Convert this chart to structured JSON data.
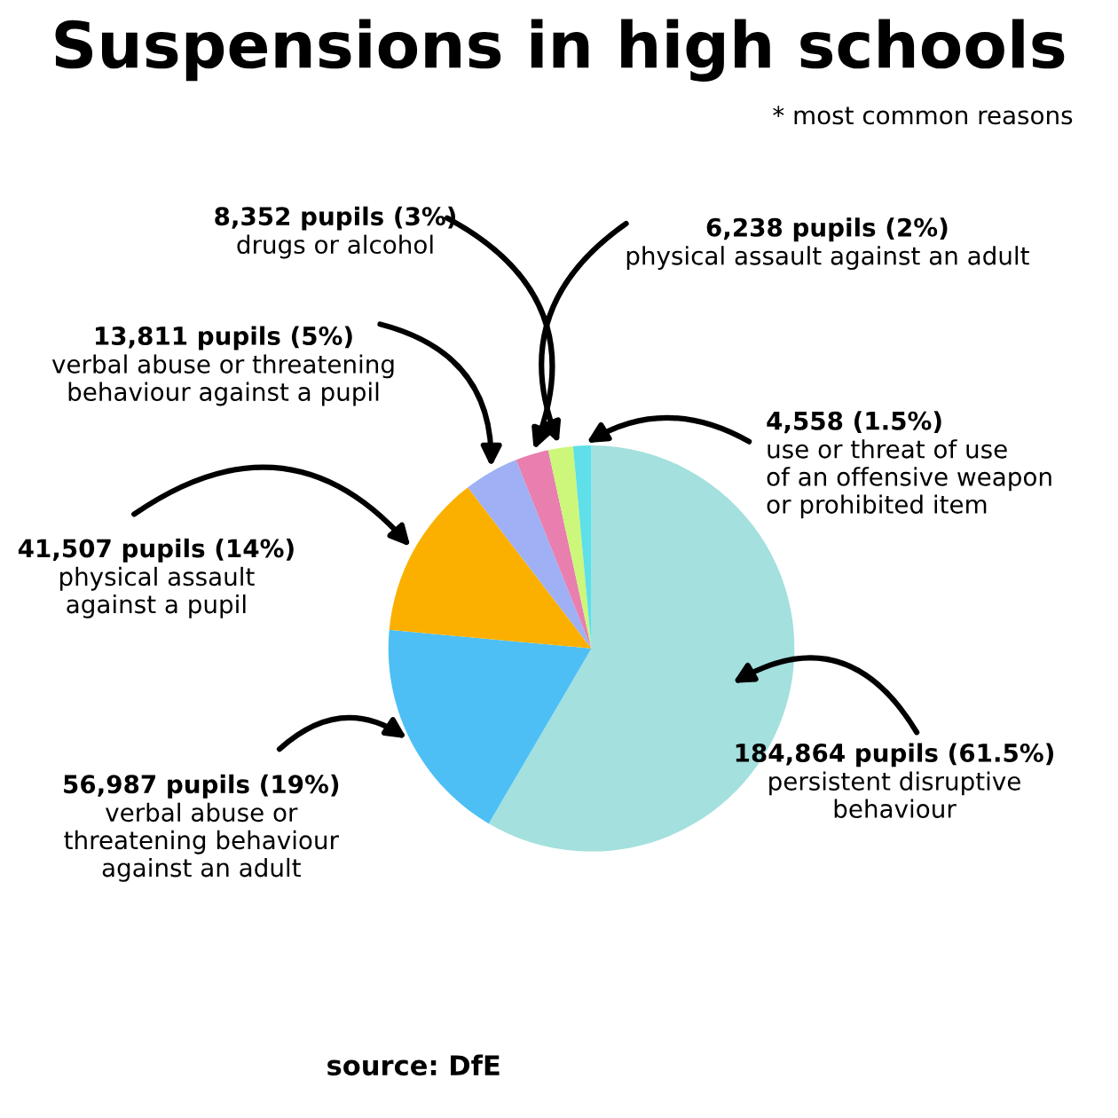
{
  "chart_data": {
    "type": "pie",
    "title": "Suspensions in high schools",
    "subtitle": "* most common reasons",
    "categories": [
      "persistent disruptive behaviour",
      "verbal abuse or threatening behaviour against an adult",
      "physical assault against a pupil",
      "verbal abuse or threatening behaviour against a pupil",
      "drugs or alcohol",
      "physical assault against an adult",
      "use or threat of use of an offensive weapon or prohibited item"
    ],
    "values": [
      184864,
      56987,
      41507,
      13811,
      8352,
      6238,
      4558
    ],
    "colors": [
      "#a3e0de",
      "#4dbff5",
      "#fbb000",
      "#9fb0f5",
      "#e87fae",
      "#ccf77a",
      "#5fdfe8"
    ],
    "value_labels": [
      "184,864 pupils (61.5%)",
      "56,987 pupils (19%)",
      "41,507 pupils (14%)",
      "13,811 pupils (5%)",
      "8,352 pupils (3%)",
      "6,238 pupils (2%)",
      "4,558 (1.5%)"
    ],
    "annotations": [
      "source: DfE"
    ]
  }
}
